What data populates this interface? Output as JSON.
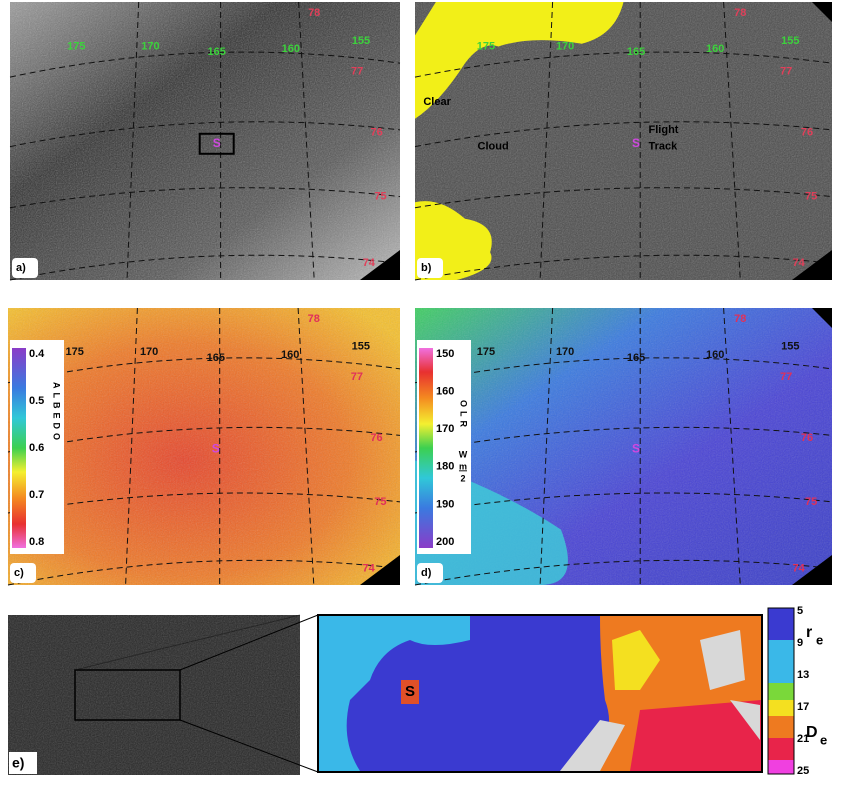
{
  "panels": [
    {
      "label": "a)",
      "lon": [
        175,
        170,
        165,
        160,
        155
      ],
      "lat": [
        78,
        77,
        76,
        75,
        74
      ],
      "marker": "S"
    },
    {
      "label": "b)",
      "lon": [
        175,
        170,
        165,
        160,
        155
      ],
      "lat": [
        78,
        77,
        76,
        75,
        74
      ],
      "marker": "S",
      "annotations": [
        "Clear",
        "Cloud",
        "Flight",
        "Track"
      ]
    },
    {
      "label": "c)",
      "lon": [
        175,
        170,
        165,
        160,
        155
      ],
      "lat": [
        78,
        77,
        76,
        75,
        74
      ],
      "marker": "S",
      "colorbar": {
        "title": "ALBEDO",
        "ticks": [
          0.4,
          0.5,
          0.6,
          0.7,
          0.8
        ]
      }
    },
    {
      "label": "d)",
      "lon": [
        175,
        170,
        165,
        160,
        155
      ],
      "lat": [
        78,
        77,
        76,
        75,
        74
      ],
      "marker": "S",
      "colorbar": {
        "title": "OLR",
        "ticks": [
          150,
          160,
          170,
          180,
          190,
          200
        ],
        "unit_top": "W",
        "unit_mid": "m",
        "unit_bottom": "2"
      }
    }
  ],
  "panel_e": {
    "label": "e)",
    "marker": "S",
    "ticks": [
      5,
      9,
      13,
      17,
      21,
      25
    ],
    "re": "r",
    "re_sub": "e",
    "de": "D",
    "de_sub": "e"
  }
}
